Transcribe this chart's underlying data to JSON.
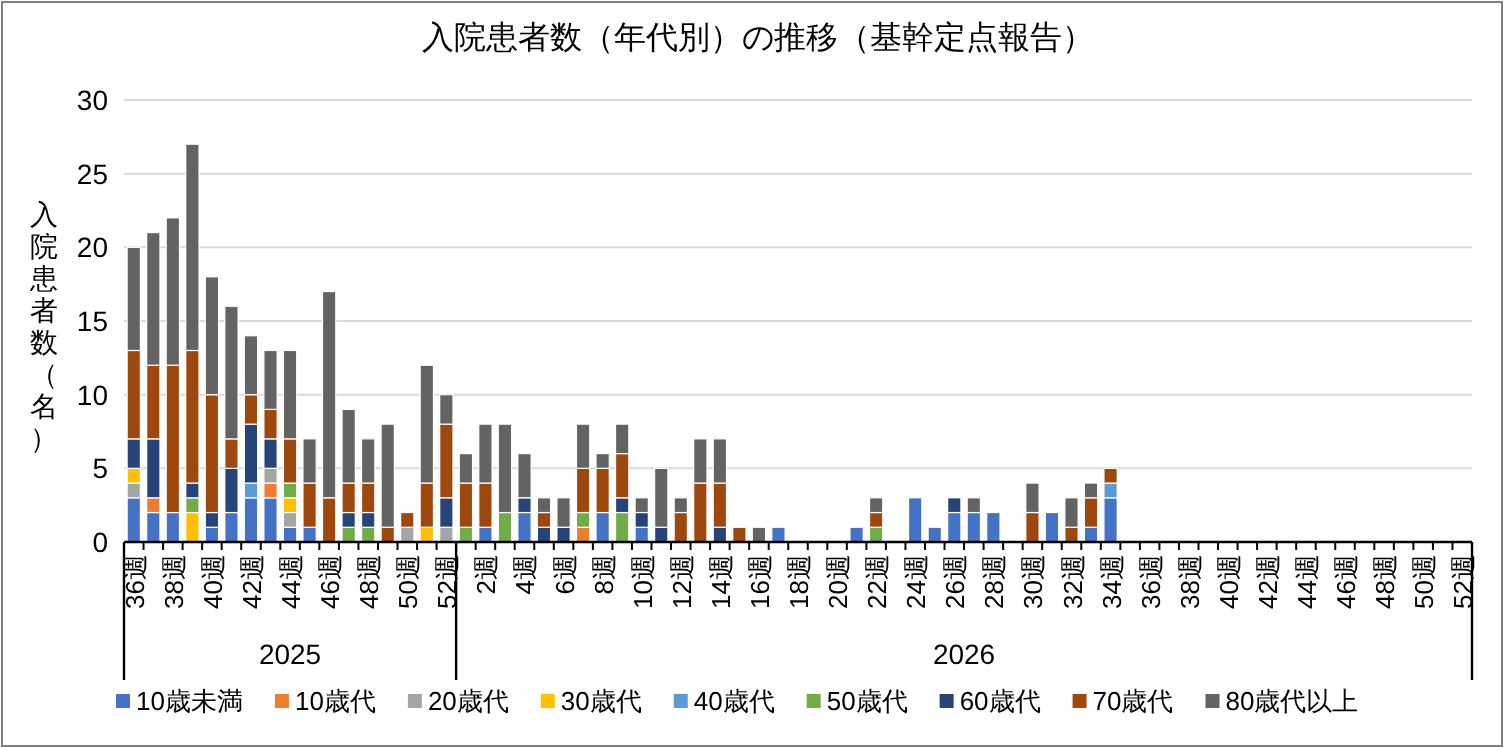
{
  "chart_data": {
    "type": "bar",
    "stacked": true,
    "title": "入院患者数（年代別）の推移（基幹定点報告）",
    "ylabel": "入院患者数（名）",
    "categories": [
      "36週",
      null,
      "38週",
      null,
      "40週",
      null,
      "42週",
      null,
      "44週",
      null,
      "46週",
      null,
      "48週",
      null,
      "50週",
      null,
      "52週",
      null,
      "2週",
      null,
      "4週",
      null,
      "6週",
      null,
      "8週",
      null,
      "10週",
      null,
      "12週",
      null,
      "14週",
      null,
      "16週",
      null,
      "18週",
      null,
      "20週",
      null,
      "22週",
      null,
      "24週",
      null,
      "26週",
      null,
      "28週",
      null,
      "30週",
      null,
      "32週",
      null,
      "34週",
      null,
      "36週",
      null,
      "38週",
      null,
      "40週",
      null,
      "42週",
      null,
      "44週",
      null,
      "46週",
      null,
      "48週",
      null,
      "50週",
      null,
      "52週"
    ],
    "annotations": [
      "2025",
      "2026"
    ],
    "ylim": [
      0,
      30
    ],
    "yticks": [
      0,
      5,
      10,
      15,
      20,
      25,
      30
    ],
    "grid": "y",
    "legend": "bottom",
    "series": [
      {
        "name": "10歳未満",
        "color": "#4472c4",
        "values": [
          3,
          2,
          2,
          0,
          1,
          2,
          3,
          3,
          1,
          1,
          0,
          0,
          0,
          0,
          0,
          0,
          0,
          0,
          1,
          0,
          2,
          0,
          0,
          0,
          2,
          0,
          1,
          0,
          0,
          0,
          0,
          0,
          0,
          1,
          0,
          0,
          0,
          1,
          0,
          0,
          3,
          1,
          2,
          2,
          2,
          0,
          0,
          2,
          0,
          1,
          3,
          null,
          null,
          null,
          null,
          null,
          null,
          null,
          null,
          null,
          null,
          null,
          null,
          null,
          null,
          null,
          null,
          null,
          null
        ]
      },
      {
        "name": "10歳代",
        "color": "#ed7d31",
        "values": [
          0,
          1,
          0,
          0,
          0,
          0,
          0,
          1,
          0,
          0,
          0,
          0,
          0,
          0,
          0,
          0,
          0,
          0,
          0,
          0,
          0,
          0,
          0,
          1,
          0,
          0,
          0,
          0,
          0,
          0,
          0,
          0,
          0,
          0,
          0,
          0,
          0,
          0,
          0,
          0,
          0,
          0,
          0,
          0,
          0,
          0,
          0,
          0,
          0,
          0,
          0,
          null,
          null,
          null,
          null,
          null,
          null,
          null,
          null,
          null,
          null,
          null,
          null,
          null,
          null,
          null,
          null,
          null,
          null
        ]
      },
      {
        "name": "20歳代",
        "color": "#a5a5a5",
        "values": [
          1,
          0,
          0,
          0,
          0,
          0,
          0,
          1,
          1,
          0,
          0,
          0,
          0,
          0,
          1,
          0,
          1,
          0,
          0,
          0,
          0,
          0,
          0,
          0,
          0,
          0,
          0,
          0,
          0,
          0,
          0,
          0,
          0,
          0,
          0,
          0,
          0,
          0,
          0,
          0,
          0,
          0,
          0,
          0,
          0,
          0,
          0,
          0,
          0,
          0,
          0,
          null,
          null,
          null,
          null,
          null,
          null,
          null,
          null,
          null,
          null,
          null,
          null,
          null,
          null,
          null,
          null,
          null,
          null
        ]
      },
      {
        "name": "30歳代",
        "color": "#ffc000",
        "values": [
          1,
          0,
          0,
          2,
          0,
          0,
          0,
          0,
          1,
          0,
          0,
          0,
          0,
          0,
          0,
          1,
          0,
          0,
          0,
          0,
          0,
          0,
          0,
          0,
          0,
          0,
          0,
          0,
          0,
          0,
          0,
          0,
          0,
          0,
          0,
          0,
          0,
          0,
          0,
          0,
          0,
          0,
          0,
          0,
          0,
          0,
          0,
          0,
          0,
          0,
          0,
          null,
          null,
          null,
          null,
          null,
          null,
          null,
          null,
          null,
          null,
          null,
          null,
          null,
          null,
          null,
          null,
          null,
          null
        ]
      },
      {
        "name": "40歳代",
        "color": "#5b9bd5",
        "values": [
          0,
          0,
          0,
          0,
          0,
          0,
          1,
          0,
          0,
          0,
          0,
          0,
          0,
          0,
          0,
          0,
          0,
          0,
          0,
          0,
          0,
          0,
          0,
          0,
          0,
          0,
          0,
          0,
          0,
          0,
          0,
          0,
          0,
          0,
          0,
          0,
          0,
          0,
          0,
          0,
          0,
          0,
          0,
          0,
          0,
          0,
          0,
          0,
          0,
          0,
          1,
          null,
          null,
          null,
          null,
          null,
          null,
          null,
          null,
          null,
          null,
          null,
          null,
          null,
          null,
          null,
          null,
          null,
          null
        ]
      },
      {
        "name": "50歳代",
        "color": "#70ad47",
        "values": [
          0,
          0,
          0,
          1,
          0,
          0,
          0,
          0,
          1,
          0,
          0,
          1,
          1,
          0,
          0,
          0,
          0,
          1,
          0,
          2,
          0,
          0,
          0,
          1,
          0,
          2,
          0,
          0,
          0,
          0,
          0,
          0,
          0,
          0,
          0,
          0,
          0,
          0,
          1,
          0,
          0,
          0,
          0,
          0,
          0,
          0,
          0,
          0,
          0,
          0,
          0,
          null,
          null,
          null,
          null,
          null,
          null,
          null,
          null,
          null,
          null,
          null,
          null,
          null,
          null,
          null,
          null,
          null,
          null
        ]
      },
      {
        "name": "60歳代",
        "color": "#264478",
        "values": [
          2,
          4,
          0,
          1,
          1,
          3,
          4,
          2,
          0,
          0,
          0,
          1,
          1,
          0,
          0,
          0,
          2,
          0,
          0,
          0,
          1,
          1,
          1,
          0,
          0,
          1,
          1,
          1,
          0,
          0,
          1,
          0,
          0,
          0,
          0,
          0,
          0,
          0,
          0,
          0,
          0,
          0,
          1,
          0,
          0,
          0,
          0,
          0,
          0,
          0,
          0,
          null,
          null,
          null,
          null,
          null,
          null,
          null,
          null,
          null,
          null,
          null,
          null,
          null,
          null,
          null,
          null,
          null,
          null
        ]
      },
      {
        "name": "70歳代",
        "color": "#9e480e",
        "values": [
          6,
          5,
          10,
          9,
          8,
          2,
          2,
          2,
          3,
          3,
          3,
          2,
          2,
          1,
          1,
          3,
          5,
          3,
          3,
          0,
          0,
          1,
          0,
          3,
          3,
          3,
          0,
          0,
          2,
          4,
          3,
          1,
          0,
          0,
          0,
          0,
          0,
          0,
          1,
          0,
          0,
          0,
          0,
          0,
          0,
          0,
          2,
          0,
          1,
          2,
          1,
          null,
          null,
          null,
          null,
          null,
          null,
          null,
          null,
          null,
          null,
          null,
          null,
          null,
          null,
          null,
          null,
          null,
          null
        ]
      },
      {
        "name": "80歳代以上",
        "color": "#636363",
        "values": [
          7,
          9,
          10,
          14,
          8,
          9,
          4,
          4,
          6,
          3,
          14,
          5,
          3,
          7,
          0,
          8,
          2,
          2,
          4,
          6,
          3,
          1,
          2,
          3,
          1,
          2,
          1,
          4,
          1,
          3,
          3,
          0,
          1,
          0,
          0,
          0,
          0,
          0,
          1,
          0,
          0,
          0,
          0,
          1,
          0,
          0,
          2,
          0,
          2,
          1,
          0,
          null,
          null,
          null,
          null,
          null,
          null,
          null,
          null,
          null,
          null,
          null,
          null,
          null,
          null,
          null,
          null,
          null,
          null
        ]
      }
    ]
  }
}
